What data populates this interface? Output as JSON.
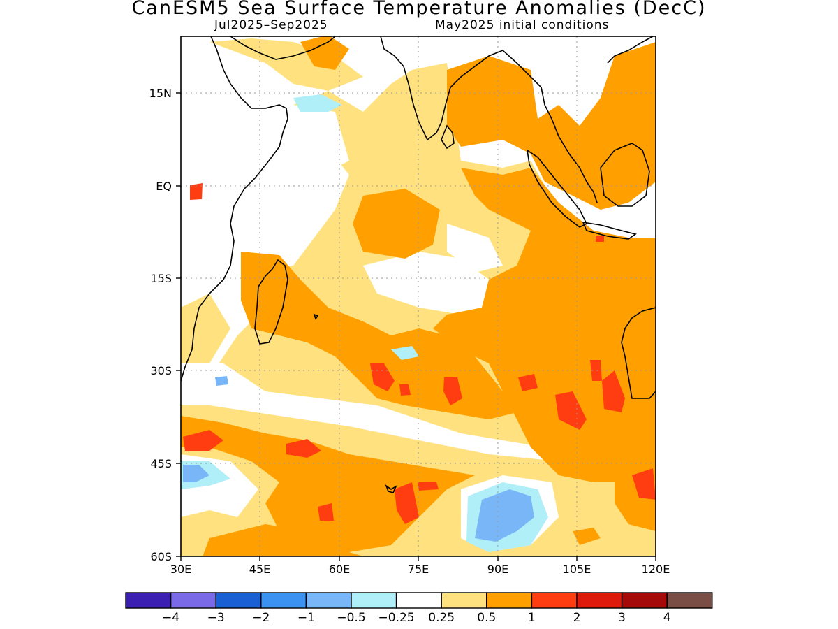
{
  "title": "CanESM5 Sea Surface Temperature Anomalies (DecC)",
  "subtitle_left": "Jul2025–Sep2025",
  "subtitle_right": "May2025 initial conditions",
  "axes": {
    "lon_ticks": [
      "30E",
      "45E",
      "60E",
      "75E",
      "90E",
      "105E",
      "120E"
    ],
    "lat_ticks": [
      "15N",
      "EQ",
      "15S",
      "30S",
      "45S",
      "60S"
    ],
    "lon_range": [
      30,
      120
    ],
    "lat_range": [
      -60,
      24
    ]
  },
  "colorbar": {
    "colors": [
      "#3a1fb2",
      "#7a6ae8",
      "#1a5fd4",
      "#3c92f0",
      "#79b6f7",
      "#b0eef8",
      "#ffffff",
      "#ffe27f",
      "#ffa000",
      "#ff3d10",
      "#de1a0d",
      "#a50a0a",
      "#7a4e45"
    ],
    "labels": [
      "−4",
      "−3",
      "−2",
      "−1",
      "−0.5",
      "−0.25",
      "0.25",
      "0.5",
      "1",
      "2",
      "3",
      "4"
    ]
  }
}
